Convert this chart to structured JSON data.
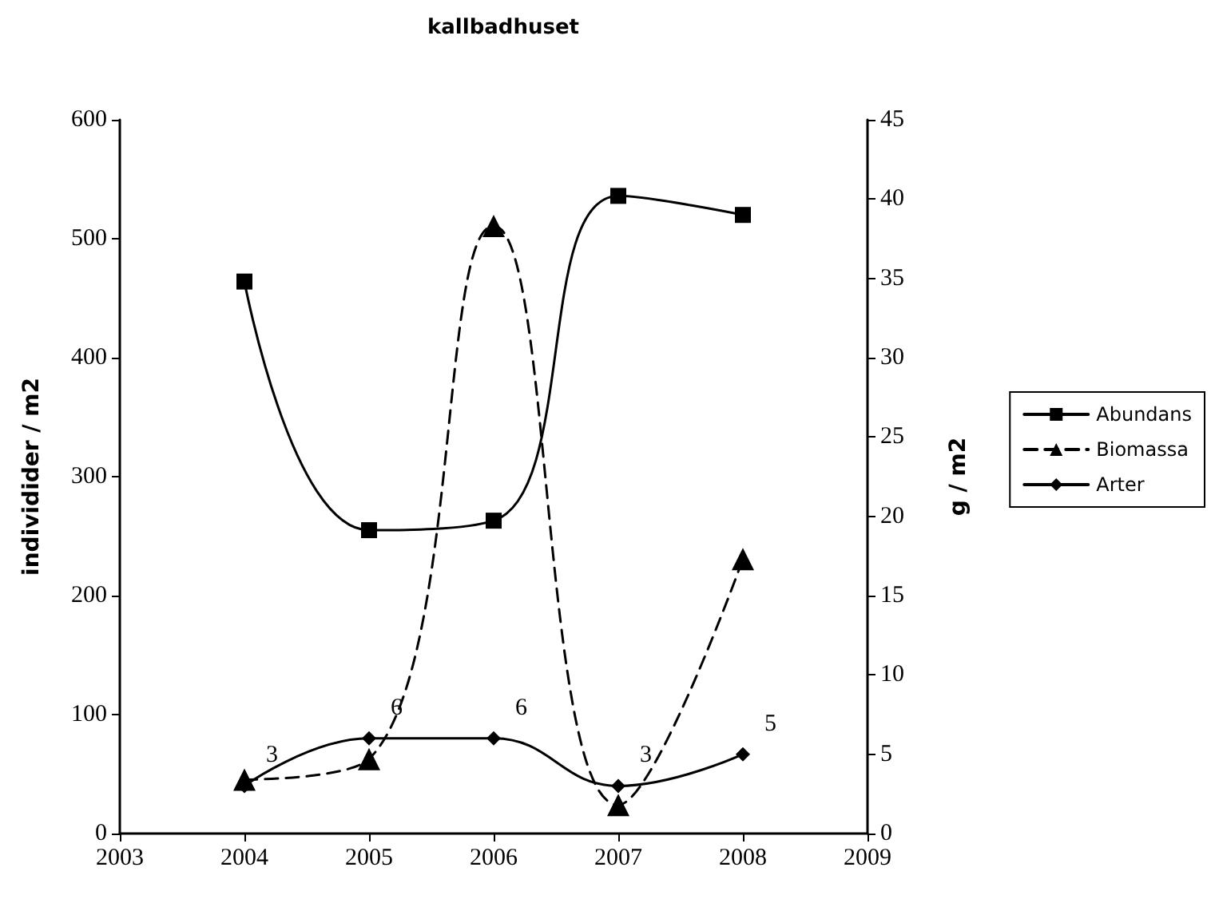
{
  "chart_data": {
    "type": "line",
    "title": "kallbadhuset",
    "ylabel": "individider / m2",
    "y2label": "g / m2",
    "x": [
      2004,
      2005,
      2006,
      2007,
      2008
    ],
    "xlim": [
      2003,
      2009
    ],
    "xticks": [
      2003,
      2004,
      2005,
      2006,
      2007,
      2008,
      2009
    ],
    "ylim": [
      0,
      600
    ],
    "yticks": [
      0,
      100,
      200,
      300,
      400,
      500,
      600
    ],
    "y2lim": [
      0,
      45
    ],
    "y2ticks": [
      0,
      5,
      10,
      15,
      20,
      25,
      30,
      35,
      40,
      45
    ],
    "series": [
      {
        "name": "Abundans",
        "color": "#000000",
        "marker": "square",
        "line_style": "solid",
        "values": [
          464,
          255,
          263,
          536,
          520
        ]
      },
      {
        "name": "Biomassa",
        "color": "#000000",
        "marker": "triangle",
        "line_style": "dashed",
        "axis": "y2",
        "values": [
          3.4,
          4.7,
          38.3,
          1.8,
          17.3
        ]
      },
      {
        "name": "Arter",
        "color": "#000000",
        "marker": "diamond",
        "line_style": "solid",
        "axis": "y2",
        "values": [
          3,
          6,
          6,
          3,
          5
        ],
        "value_labels": [
          "3",
          "6",
          "6",
          "3",
          "5"
        ]
      }
    ],
    "grid": false,
    "legend": "right"
  }
}
